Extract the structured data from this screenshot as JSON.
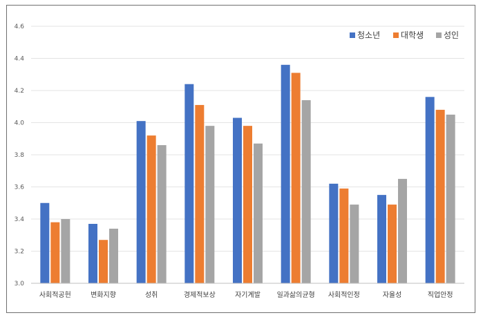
{
  "chart_data": {
    "type": "bar",
    "categories": [
      "사회적공헌",
      "변화지향",
      "성취",
      "경제적보상",
      "자기계발",
      "일과삶의균형",
      "사회적인정",
      "자율성",
      "직업안정"
    ],
    "series": [
      {
        "name": "청소년",
        "color": "#4472c4",
        "values": [
          3.5,
          3.37,
          4.01,
          4.24,
          4.03,
          4.36,
          3.62,
          3.55,
          4.16
        ]
      },
      {
        "name": "대학생",
        "color": "#ed7d31",
        "values": [
          3.38,
          3.27,
          3.92,
          4.11,
          3.98,
          4.31,
          3.59,
          3.49,
          4.08
        ]
      },
      {
        "name": "성인",
        "color": "#a5a5a5",
        "values": [
          3.4,
          3.34,
          3.86,
          3.98,
          3.87,
          4.14,
          3.49,
          3.65,
          4.05
        ]
      }
    ],
    "ylim": [
      3.0,
      4.6
    ],
    "yticks": [
      "3.0",
      "3.2",
      "3.4",
      "3.6",
      "3.8",
      "4.0",
      "4.2",
      "4.4",
      "4.6"
    ],
    "grid": true,
    "legend": "top-right"
  }
}
